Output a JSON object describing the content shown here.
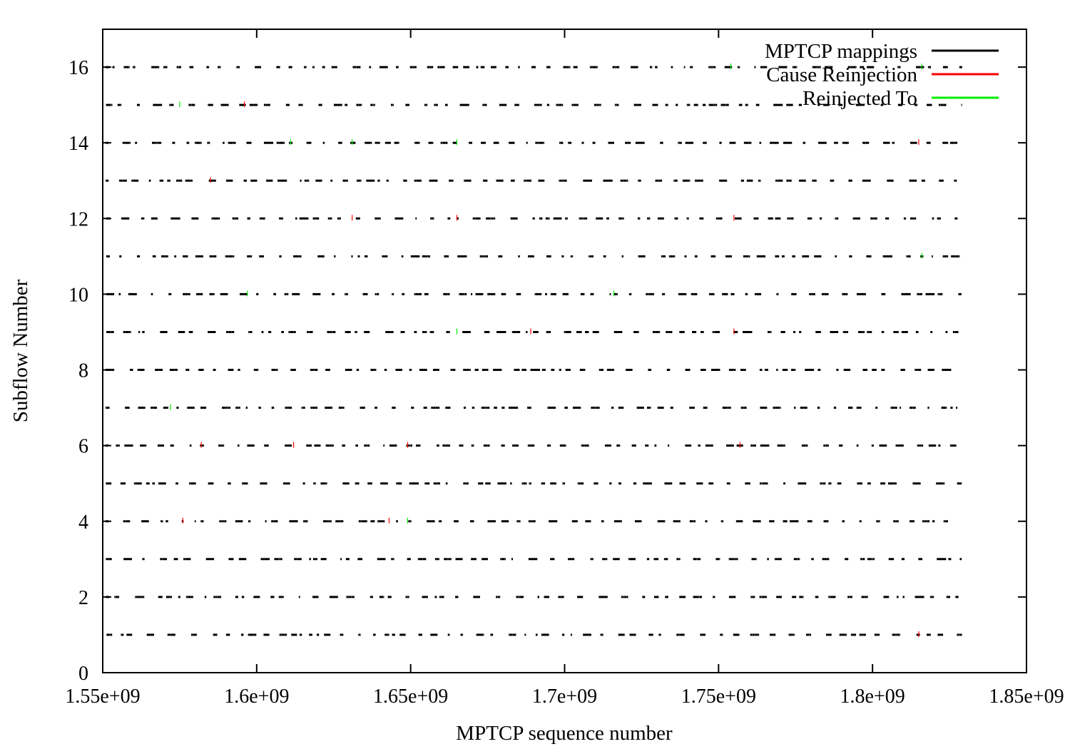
{
  "chart_data": {
    "type": "scatter",
    "title": "",
    "xlabel": "MPTCP sequence number",
    "ylabel": "Subflow Number",
    "xlim": [
      1550000000,
      1850000000
    ],
    "ylim": [
      0,
      17
    ],
    "x_ticks": [
      {
        "value": 1550000000,
        "label": "1.55e+09"
      },
      {
        "value": 1600000000,
        "label": "1.6e+09"
      },
      {
        "value": 1650000000,
        "label": "1.65e+09"
      },
      {
        "value": 1700000000,
        "label": "1.7e+09"
      },
      {
        "value": 1750000000,
        "label": "1.75e+09"
      },
      {
        "value": 1800000000,
        "label": "1.8e+09"
      },
      {
        "value": 1850000000,
        "label": "1.85e+09"
      }
    ],
    "y_ticks": [
      {
        "value": 0,
        "label": "0"
      },
      {
        "value": 2,
        "label": "2"
      },
      {
        "value": 4,
        "label": "4"
      },
      {
        "value": 6,
        "label": "6"
      },
      {
        "value": 8,
        "label": "8"
      },
      {
        "value": 10,
        "label": "10"
      },
      {
        "value": 12,
        "label": "12"
      },
      {
        "value": 14,
        "label": "14"
      },
      {
        "value": 16,
        "label": "16"
      }
    ],
    "grid": false,
    "legend": {
      "position": "top-right"
    },
    "data_x_range": [
      1551000000,
      1829000000
    ],
    "subflows": [
      1,
      2,
      3,
      4,
      5,
      6,
      7,
      8,
      9,
      10,
      11,
      12,
      13,
      14,
      15,
      16
    ],
    "series": [
      {
        "name": "MPTCP mappings",
        "color": "#000000",
        "mark": "short vertical tick per mapping at its subflow number; marks dense along every subflow 1-16 across the data range"
      },
      {
        "name": "Cause Reinjection",
        "color": "#ff0000",
        "points": [
          {
            "x": 1585000000,
            "y": 13
          },
          {
            "x": 1582000000,
            "y": 6
          },
          {
            "x": 1576000000,
            "y": 4
          },
          {
            "x": 1596000000,
            "y": 15
          },
          {
            "x": 1631000000,
            "y": 12
          },
          {
            "x": 1665000000,
            "y": 12
          },
          {
            "x": 1689000000,
            "y": 9
          },
          {
            "x": 1612000000,
            "y": 6
          },
          {
            "x": 1649000000,
            "y": 6
          },
          {
            "x": 1643000000,
            "y": 4
          },
          {
            "x": 1755000000,
            "y": 12
          },
          {
            "x": 1755000000,
            "y": 9
          },
          {
            "x": 1757000000,
            "y": 6
          },
          {
            "x": 1815000000,
            "y": 14
          },
          {
            "x": 1815000000,
            "y": 1
          }
        ]
      },
      {
        "name": "Reinjected To",
        "color": "#00ee00",
        "points": [
          {
            "x": 1575000000,
            "y": 15
          },
          {
            "x": 1611000000,
            "y": 14
          },
          {
            "x": 1631000000,
            "y": 14
          },
          {
            "x": 1665000000,
            "y": 14
          },
          {
            "x": 1597000000,
            "y": 10
          },
          {
            "x": 1665000000,
            "y": 9
          },
          {
            "x": 1572000000,
            "y": 7
          },
          {
            "x": 1649000000,
            "y": 4
          },
          {
            "x": 1716000000,
            "y": 10
          },
          {
            "x": 1754000000,
            "y": 16
          },
          {
            "x": 1816000000,
            "y": 16
          },
          {
            "x": 1816000000,
            "y": 11
          }
        ]
      }
    ]
  }
}
